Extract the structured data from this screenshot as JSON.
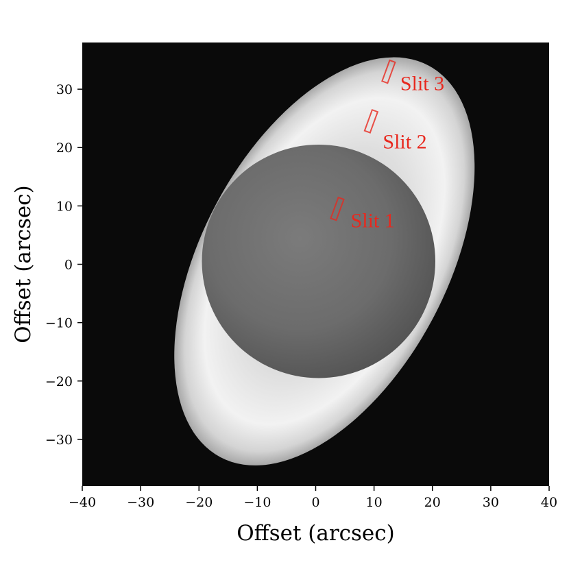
{
  "chart_data": {
    "type": "heatmap",
    "title": "",
    "xlabel": "Offset (arcsec)",
    "ylabel": "Offset (arcsec)",
    "xlim": [
      -40,
      40
    ],
    "ylim": [
      -38,
      38
    ],
    "x_ticks": [
      -40,
      -30,
      -20,
      -10,
      0,
      10,
      20,
      30,
      40
    ],
    "y_ticks": [
      -30,
      -20,
      -10,
      0,
      10,
      20,
      30
    ],
    "x_tick_labels": [
      "−40",
      "−30",
      "−20",
      "−10",
      "0",
      "10",
      "20",
      "30",
      "40"
    ],
    "y_tick_labels": [
      "−30",
      "−20",
      "−10",
      "0",
      "10",
      "20",
      "30"
    ],
    "colormap": "grayscale",
    "background_color": "#0a0a0a",
    "annotation_color": "#e8281e",
    "image": {
      "outer_ellipse": {
        "center": [
          1.5,
          0.5
        ],
        "semi_major": 38,
        "semi_minor": 21,
        "major_axis_angle_deg": 62
      },
      "inner_disk": {
        "center": [
          0.5,
          0.5
        ],
        "radius": 20
      }
    },
    "slits": [
      {
        "name": "Slit 1",
        "center": [
          3.7,
          9.5
        ],
        "length": 3.8,
        "width": 1.0,
        "angle_deg": 70,
        "label_position": [
          6,
          7.5
        ]
      },
      {
        "name": "Slit 2",
        "center": [
          9.5,
          24.5
        ],
        "length": 3.8,
        "width": 1.0,
        "angle_deg": 70,
        "label_position": [
          11.5,
          21
        ]
      },
      {
        "name": "Slit 3",
        "center": [
          12.5,
          33.0
        ],
        "length": 3.8,
        "width": 1.0,
        "angle_deg": 70,
        "label_position": [
          14.5,
          31
        ]
      }
    ]
  }
}
